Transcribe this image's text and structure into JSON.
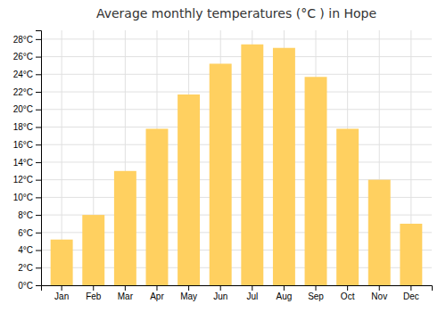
{
  "chart_data": {
    "type": "bar",
    "title": "Average monthly temperatures (°C ) in Hope",
    "categories": [
      "Jan",
      "Feb",
      "Mar",
      "Apr",
      "May",
      "Jun",
      "Jul",
      "Aug",
      "Sep",
      "Oct",
      "Nov",
      "Dec"
    ],
    "values": [
      5.2,
      8.0,
      13.0,
      17.8,
      21.7,
      25.2,
      27.4,
      27.0,
      23.7,
      17.8,
      12.0,
      7.0
    ],
    "color": "#FFD060",
    "ylim": [
      0,
      29
    ],
    "yticks": [
      {
        "value": 0,
        "label": "0°C"
      },
      {
        "value": 2,
        "label": "2°C"
      },
      {
        "value": 4,
        "label": "4°C"
      },
      {
        "value": 6,
        "label": "6°C"
      },
      {
        "value": 8,
        "label": "8°C"
      },
      {
        "value": 10,
        "label": "10°C"
      },
      {
        "value": 12,
        "label": "12°C"
      },
      {
        "value": 14,
        "label": "14°C"
      },
      {
        "value": 16,
        "label": "16°C"
      },
      {
        "value": 18,
        "label": "18°C"
      },
      {
        "value": 20,
        "label": "20°C"
      },
      {
        "value": 22,
        "label": "22°C"
      },
      {
        "value": 24,
        "label": "24°C"
      },
      {
        "value": 26,
        "label": "26°C"
      },
      {
        "value": 28,
        "label": "28°C"
      }
    ],
    "grid": true
  }
}
